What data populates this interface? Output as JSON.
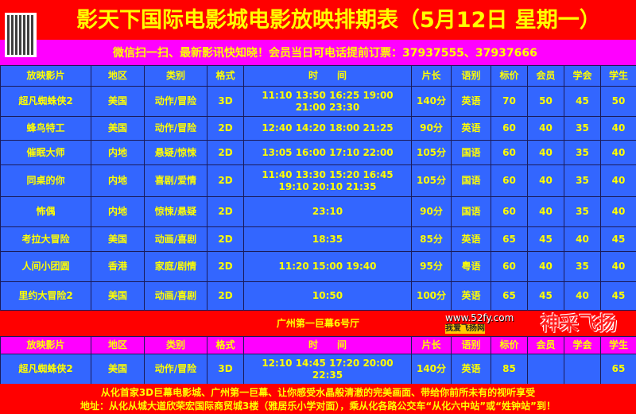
{
  "title": "影天下国际电影城电影放映排期表（5月12日 星期一）",
  "subtitle": "微信扫一扫、最新影讯快知晓！会员当日可电话提前订票：37937555、37937666",
  "headers": [
    "放映影片",
    "地区",
    "类别",
    "格式",
    "时　　间",
    "片长",
    "语别",
    "标价",
    "会员",
    "学会",
    "学生"
  ],
  "rows": [
    [
      "超凡蜘蛛侠2",
      "美国",
      "动作/冒险",
      "3D",
      "11:10 13:50 16:25 19:00 21:00 23:30",
      "140分",
      "英语",
      "70",
      "50",
      "45",
      "50"
    ],
    [
      "蜂鸟特工",
      "美国",
      "动作/冒险",
      "2D",
      "12:40 14:20 18:00 21:25",
      "90分",
      "英语",
      "60",
      "40",
      "35",
      "40"
    ],
    [
      "催眠大师",
      "内地",
      "悬疑/惊悚",
      "2D",
      "13:05 16:00 17:10 22:00",
      "105分",
      "国语",
      "60",
      "40",
      "35",
      "40"
    ],
    [
      "同桌的你",
      "内地",
      "喜剧/爱情",
      "2D",
      "11:40 13:30 15:20 16:45 19:10 20:10 21:35",
      "105分",
      "国语",
      "60",
      "40",
      "35",
      "40"
    ],
    [
      "怖偶",
      "内地",
      "惊悚/悬疑",
      "2D",
      "23:10",
      "90分",
      "国语",
      "60",
      "40",
      "35",
      "40"
    ],
    [
      "考拉大冒险",
      "美国",
      "动画/喜剧",
      "2D",
      "18:35",
      "85分",
      "英语",
      "65",
      "45",
      "40",
      "45"
    ],
    [
      "人间小团圆",
      "香港",
      "家庭/剧情",
      "2D",
      "11:20 15:00 19:40",
      "95分",
      "粤语",
      "60",
      "40",
      "35",
      "40"
    ],
    [
      "里约大冒险2",
      "美国",
      "动画/喜剧",
      "2D",
      "10:50",
      "100分",
      "英语",
      "65",
      "45",
      "40",
      "45"
    ]
  ],
  "section_title": "广州第一巨幕6号厅",
  "hall_rows": [
    [
      "超凡蜘蛛侠2",
      "美国",
      "动作/冒险",
      "3D",
      "12:10 14:45 17:20 20:00 22:35",
      "140分",
      "英语",
      "85",
      "",
      "",
      "65"
    ]
  ],
  "footer_line1": "从化首家3D巨幕电影城、广州第一巨幕、让你感受水晶般清澈的完美画面、带给你前所未有的视听享受",
  "footer_line2": "地址：从化从城大道欣荣宏国际商贸城3楼（雅居乐小学对面），乘从化各路公交车“从化六中站”或“姓钟站”到！",
  "watermark": {
    "logo": "神采飞扬",
    "url": "www.52fy.com",
    "slogan": "我爱飞扬网"
  },
  "colors": {
    "title_bg": "#ff0000",
    "subtitle_bg": "#ff00ff",
    "table_bg": "#3366ff",
    "text": "#ffff00"
  }
}
